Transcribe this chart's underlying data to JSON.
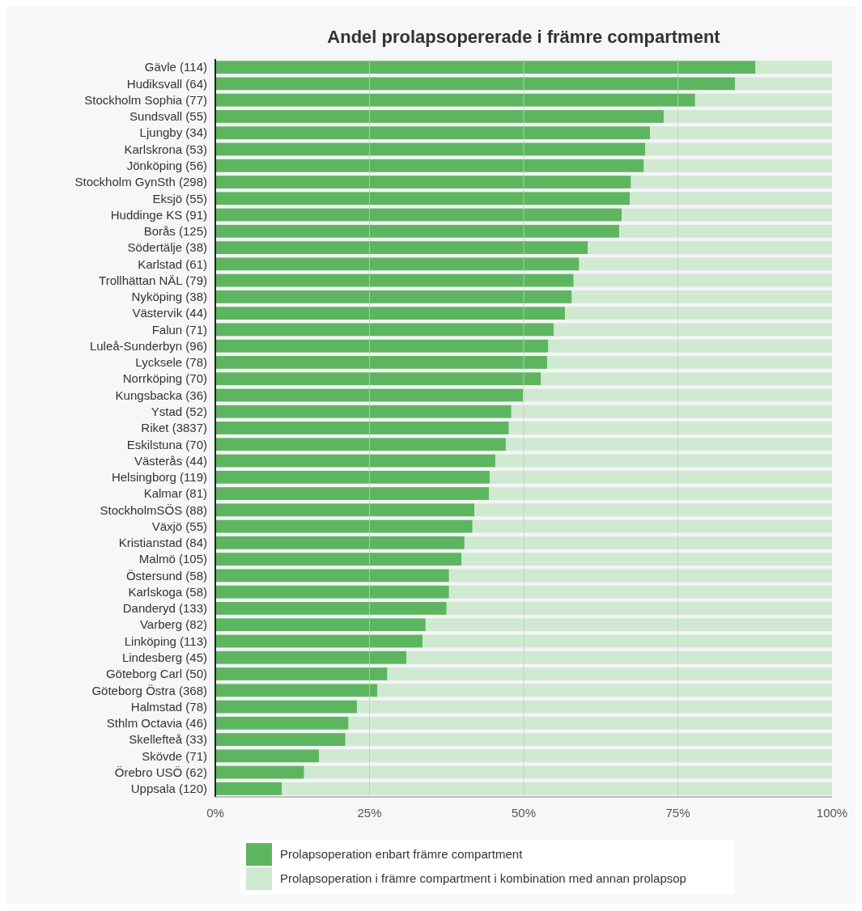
{
  "chart_data": {
    "type": "bar",
    "orientation": "horizontal",
    "stacked": true,
    "title": "Andel prolapsopererade i främre compartment",
    "categories": [
      "Gävle (114)",
      "Hudiksvall (64)",
      "Stockholm Sophia (77)",
      "Sundsvall (55)",
      "Ljungby (34)",
      "Karlskrona (53)",
      "Jönköping (56)",
      "Stockholm GynSth (298)",
      "Eksjö (55)",
      "Huddinge KS (91)",
      "Borås (125)",
      "Södertälje (38)",
      "Karlstad (61)",
      "Trollhättan NÄL (79)",
      "Nyköping (38)",
      "Västervik (44)",
      "Falun (71)",
      "Luleå-Sunderbyn (96)",
      "Lycksele (78)",
      "Norrköping (70)",
      "Kungsbacka (36)",
      "Ystad (52)",
      "Riket (3837)",
      "Eskilstuna (70)",
      "Västerås (44)",
      "Helsingborg (119)",
      "Kalmar (81)",
      "StockholmSÖS (88)",
      "Växjö (55)",
      "Kristianstad (84)",
      "Malmö (105)",
      "Östersund (58)",
      "Karlskoga (58)",
      "Danderyd (133)",
      "Varberg (82)",
      "Linköping (113)",
      "Lindesberg (45)",
      "Göteborg Carl (50)",
      "Göteborg Östra (368)",
      "Halmstad (78)",
      "Sthlm Octavia (46)",
      "Skellefteå (33)",
      "Skövde (71)",
      "Örebro USÖ (62)",
      "Uppsala (120)"
    ],
    "series": [
      {
        "name": "Prolapsoperation enbart främre compartment",
        "color": "#5db65f",
        "values": [
          87.6,
          84.3,
          77.8,
          72.7,
          70.5,
          69.7,
          69.5,
          67.4,
          67.2,
          65.9,
          65.5,
          60.4,
          59.0,
          58.1,
          57.8,
          56.7,
          54.9,
          54.0,
          53.8,
          52.8,
          49.9,
          48.0,
          47.6,
          47.1,
          45.4,
          44.5,
          44.4,
          42.0,
          41.7,
          40.4,
          39.9,
          37.9,
          37.9,
          37.5,
          34.1,
          33.6,
          31.0,
          27.9,
          26.3,
          23.0,
          21.6,
          21.1,
          16.8,
          14.4,
          10.8
        ]
      },
      {
        "name": "Prolapsoperation i främre compartment i kombination med annan prolapsop",
        "color": "#d0e9d1",
        "values": [
          12.4,
          15.7,
          22.2,
          27.3,
          29.5,
          30.3,
          30.5,
          32.6,
          32.8,
          34.1,
          34.5,
          39.6,
          41.0,
          41.9,
          42.2,
          43.3,
          45.1,
          46.0,
          46.2,
          47.2,
          50.1,
          52.0,
          52.4,
          52.9,
          54.6,
          55.5,
          55.6,
          58.0,
          58.3,
          59.6,
          60.1,
          62.1,
          62.1,
          62.5,
          65.9,
          66.4,
          69.0,
          72.1,
          73.7,
          77.0,
          78.4,
          78.9,
          83.2,
          85.6,
          89.2
        ]
      }
    ],
    "xlim": [
      0,
      100
    ],
    "xticks": [
      {
        "value": 0,
        "label": "0%"
      },
      {
        "value": 25,
        "label": "25%"
      },
      {
        "value": 50,
        "label": "50%"
      },
      {
        "value": 75,
        "label": "75%"
      },
      {
        "value": 100,
        "label": "100%"
      }
    ],
    "grid": "x",
    "legend": "bottom"
  }
}
